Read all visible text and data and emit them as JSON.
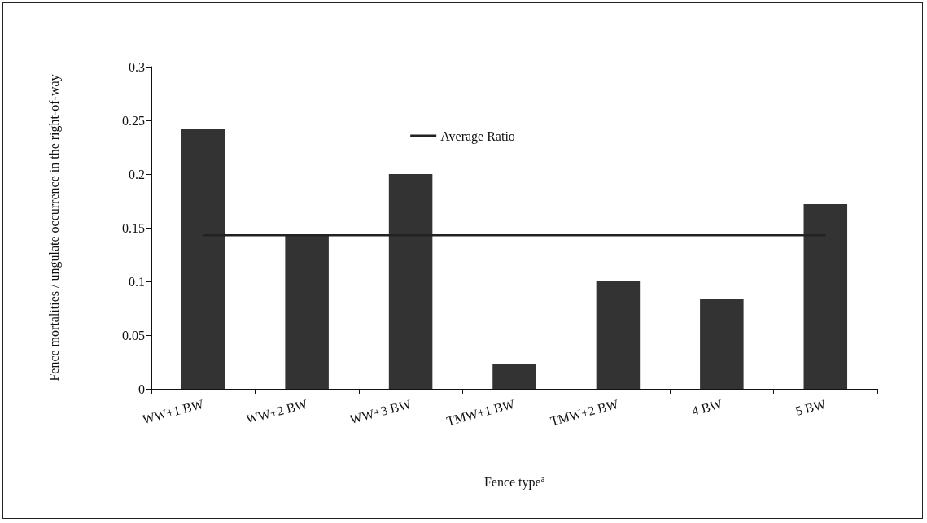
{
  "chart_data": {
    "type": "bar",
    "xlabel": "Fence type$^{a}$",
    "ylabel": "Fence mortalities / ungulate occurrence in the right-of-way",
    "categories": [
      "WW+1 BW",
      "WW+2 BW",
      "WW+3 BW",
      "TMW+1 BW",
      "TMW+2 BW",
      "4 BW",
      "5 BW"
    ],
    "series": [
      {
        "color": "#333333",
        "values": [
          0.242,
          0.143,
          0.2,
          0.023,
          0.1,
          0.084,
          0.172
        ]
      },
      {
        "type": "line",
        "name": "Average Ratio",
        "color": "#222222",
        "values": [
          0.143,
          0.143,
          0.143,
          0.143,
          0.143,
          0.143,
          0.143
        ]
      }
    ],
    "ylim": [
      0,
      0.3
    ],
    "yticks": [
      0,
      0.05,
      0.1,
      0.15,
      0.2,
      0.25,
      0.3
    ],
    "grid": false,
    "legend": "top",
    "marker": "none",
    "line_style": "solid"
  }
}
